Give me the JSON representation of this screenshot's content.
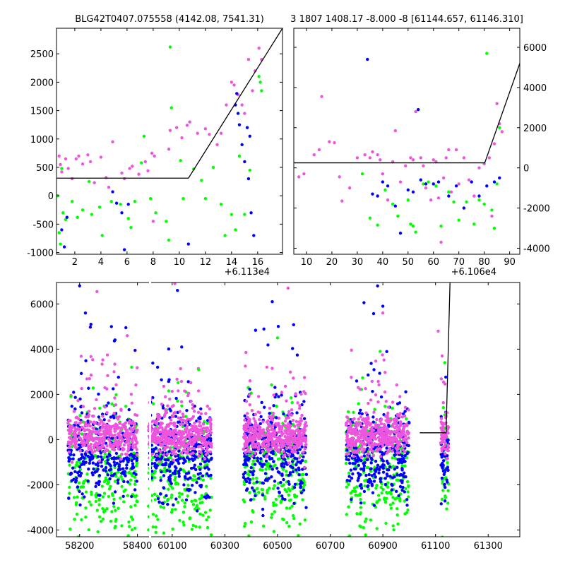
{
  "colors": {
    "blue": "#0000ff",
    "green": "#00ff00",
    "pink": "#ee55dd",
    "line": "#000000"
  },
  "chart_data": [
    {
      "type": "scatter",
      "title": "BLG42T0407.075558 (4142.08, 7541.31)",
      "x_offset_label": "+6.113e4",
      "xlim": [
        0.6,
        17.9
      ],
      "ylim": [
        -1030,
        2950
      ],
      "x_ticks": [
        "2",
        "4",
        "6",
        "8",
        "10",
        "12",
        "14",
        "16"
      ],
      "y_ticks": [
        "-1000",
        "-500",
        "0",
        "500",
        "1000",
        "1500",
        "2000",
        "2500"
      ],
      "y_axis_side": "left",
      "model_line": {
        "x": [
          0.6,
          10.7,
          17.9
        ],
        "y": [
          310,
          310,
          2950
        ]
      },
      "series": [
        {
          "color": "pink",
          "points": [
            [
              0.8,
              700
            ],
            [
              0.9,
              550
            ],
            [
              1.0,
              420
            ],
            [
              1.3,
              650
            ],
            [
              1.5,
              480
            ],
            [
              1.8,
              300
            ],
            [
              2.1,
              650
            ],
            [
              2.3,
              700
            ],
            [
              2.6,
              560
            ],
            [
              3.0,
              720
            ],
            [
              3.2,
              600
            ],
            [
              3.5,
              230
            ],
            [
              4.0,
              680
            ],
            [
              4.4,
              320
            ],
            [
              4.6,
              150
            ],
            [
              4.9,
              950
            ],
            [
              5.6,
              400
            ],
            [
              5.8,
              300
            ],
            [
              6.2,
              480
            ],
            [
              6.4,
              520
            ],
            [
              6.9,
              380
            ],
            [
              7.4,
              600
            ],
            [
              7.6,
              440
            ],
            [
              7.9,
              750
            ],
            [
              8.0,
              -450
            ],
            [
              8.1,
              700
            ],
            [
              9.2,
              820
            ],
            [
              9.3,
              1150
            ],
            [
              9.8,
              1200
            ],
            [
              10.2,
              1020
            ],
            [
              10.6,
              1240
            ],
            [
              10.8,
              1300
            ],
            [
              11.4,
              1100
            ],
            [
              12.0,
              1180
            ],
            [
              12.3,
              1080
            ],
            [
              12.9,
              900
            ],
            [
              13.2,
              1100
            ],
            [
              13.6,
              1600
            ],
            [
              14.0,
              2000
            ],
            [
              14.2,
              1950
            ],
            [
              14.5,
              1780
            ],
            [
              14.8,
              1600
            ],
            [
              15.0,
              1450
            ],
            [
              15.3,
              2400
            ],
            [
              15.6,
              1850
            ],
            [
              15.8,
              2200
            ],
            [
              16.1,
              2600
            ],
            [
              16.3,
              2400
            ]
          ]
        },
        {
          "color": "green",
          "points": [
            [
              0.7,
              0
            ],
            [
              0.8,
              -650
            ],
            [
              0.9,
              -850
            ],
            [
              1.0,
              480
            ],
            [
              1.1,
              -300
            ],
            [
              1.3,
              -420
            ],
            [
              1.8,
              -100
            ],
            [
              2.2,
              -380
            ],
            [
              2.6,
              -250
            ],
            [
              3.1,
              250
            ],
            [
              3.3,
              -330
            ],
            [
              3.9,
              -200
            ],
            [
              4.1,
              -700
            ],
            [
              4.8,
              -100
            ],
            [
              5.5,
              -150
            ],
            [
              6.1,
              -400
            ],
            [
              6.3,
              -560
            ],
            [
              6.6,
              -100
            ],
            [
              7.1,
              580
            ],
            [
              7.3,
              1050
            ],
            [
              7.8,
              -50
            ],
            [
              8.2,
              -300
            ],
            [
              9.0,
              -450
            ],
            [
              9.2,
              -780
            ],
            [
              9.4,
              1550
            ],
            [
              9.3,
              2620
            ],
            [
              10.1,
              620
            ],
            [
              10.3,
              -50
            ],
            [
              11.1,
              470
            ],
            [
              11.7,
              270
            ],
            [
              12.0,
              -50
            ],
            [
              12.6,
              500
            ],
            [
              13.2,
              -150
            ],
            [
              13.5,
              -700
            ],
            [
              14.0,
              -330
            ],
            [
              14.3,
              -600
            ],
            [
              14.6,
              700
            ],
            [
              15.0,
              -330
            ],
            [
              15.4,
              450
            ],
            [
              16.1,
              2100
            ],
            [
              16.2,
              2000
            ],
            [
              16.3,
              1850
            ]
          ]
        },
        {
          "color": "blue",
          "points": [
            [
              1.0,
              -600
            ],
            [
              1.2,
              -900
            ],
            [
              1.4,
              -380
            ],
            [
              4.9,
              70
            ],
            [
              5.2,
              -130
            ],
            [
              5.6,
              -300
            ],
            [
              5.8,
              -950
            ],
            [
              6.1,
              -150
            ],
            [
              10.7,
              -850
            ],
            [
              14.3,
              1600
            ],
            [
              14.4,
              1800
            ],
            [
              14.5,
              1450
            ],
            [
              14.6,
              1250
            ],
            [
              14.8,
              900
            ],
            [
              15.0,
              600
            ],
            [
              15.2,
              1200
            ],
            [
              15.4,
              1050
            ],
            [
              15.5,
              -300
            ],
            [
              15.7,
              -700
            ],
            [
              15.3,
              300
            ]
          ]
        }
      ]
    },
    {
      "type": "scatter",
      "title": "3 1807 1408.17 -8.000 -8 [61144.657, 61146.310]",
      "x_offset_label": "+6.106e4",
      "xlim": [
        5,
        94
      ],
      "ylim": [
        -4300,
        6950
      ],
      "x_ticks": [
        "10",
        "20",
        "30",
        "40",
        "50",
        "60",
        "70",
        "80",
        "90"
      ],
      "y_ticks": [
        "-4000",
        "-2000",
        "0",
        "2000",
        "4000",
        "6000"
      ],
      "y_axis_side": "right",
      "model_line": {
        "x": [
          5,
          80.2,
          94
        ],
        "y": [
          250,
          250,
          5200
        ]
      },
      "series": [
        {
          "color": "pink",
          "points": [
            [
              7,
              -450
            ],
            [
              9,
              -300
            ],
            [
              13,
              650
            ],
            [
              15,
              900
            ],
            [
              16,
              3550
            ],
            [
              19,
              1300
            ],
            [
              21,
              1250
            ],
            [
              23,
              -450
            ],
            [
              24,
              -1650
            ],
            [
              27,
              -1000
            ],
            [
              30,
              500
            ],
            [
              33,
              650
            ],
            [
              36,
              800
            ],
            [
              38,
              650
            ],
            [
              40,
              -300
            ],
            [
              42,
              -1600
            ],
            [
              45,
              1850
            ],
            [
              47,
              -700
            ],
            [
              49,
              100
            ],
            [
              51,
              500
            ],
            [
              53,
              2800
            ],
            [
              55,
              500
            ],
            [
              57,
              -1000
            ],
            [
              59,
              -1600
            ],
            [
              60,
              400
            ],
            [
              62,
              -1500
            ],
            [
              63,
              -3700
            ],
            [
              64,
              -500
            ],
            [
              66,
              900
            ],
            [
              67,
              -1200
            ],
            [
              69,
              900
            ],
            [
              70,
              -800
            ],
            [
              72,
              500
            ],
            [
              74,
              -600
            ],
            [
              76,
              -1400
            ],
            [
              78,
              0
            ],
            [
              80,
              200
            ],
            [
              82,
              500
            ],
            [
              84,
              1200
            ],
            [
              86,
              2200
            ],
            [
              87,
              1800
            ],
            [
              85,
              3200
            ],
            [
              83,
              -2400
            ],
            [
              65,
              500
            ],
            [
              61,
              300
            ],
            [
              56,
              100
            ],
            [
              52,
              400
            ],
            [
              44,
              300
            ],
            [
              39,
              400
            ],
            [
              35,
              500
            ]
          ]
        },
        {
          "color": "green",
          "points": [
            [
              32,
              -300
            ],
            [
              35,
              -2500
            ],
            [
              38,
              -2850
            ],
            [
              41,
              -1100
            ],
            [
              44,
              -1800
            ],
            [
              46,
              -2400
            ],
            [
              50,
              -1600
            ],
            [
              51,
              -2800
            ],
            [
              52,
              -2900
            ],
            [
              53,
              -3200
            ],
            [
              56,
              -800
            ],
            [
              58,
              -700
            ],
            [
              61,
              -900
            ],
            [
              63,
              -2900
            ],
            [
              66,
              -1200
            ],
            [
              68,
              -1700
            ],
            [
              70,
              -2600
            ],
            [
              73,
              -1700
            ],
            [
              76,
              -2800
            ],
            [
              78,
              -1600
            ],
            [
              80,
              -1800
            ],
            [
              81,
              5700
            ],
            [
              83,
              -2100
            ],
            [
              84,
              -3000
            ],
            [
              85,
              -800
            ],
            [
              86,
              2000
            ]
          ]
        },
        {
          "color": "blue",
          "points": [
            [
              34,
              5400
            ],
            [
              36,
              -1300
            ],
            [
              38,
              -1400
            ],
            [
              40,
              -700
            ],
            [
              42,
              -900
            ],
            [
              45,
              -1900
            ],
            [
              47,
              -3250
            ],
            [
              50,
              -1100
            ],
            [
              52,
              -1200
            ],
            [
              54,
              2900
            ],
            [
              55,
              -600
            ],
            [
              57,
              -800
            ],
            [
              60,
              -800
            ],
            [
              62,
              -700
            ],
            [
              66,
              -1400
            ],
            [
              69,
              -900
            ],
            [
              72,
              -2000
            ],
            [
              75,
              -700
            ],
            [
              78,
              -1400
            ],
            [
              81,
              -900
            ],
            [
              84,
              -700
            ],
            [
              86,
              -500
            ]
          ]
        }
      ]
    },
    {
      "type": "scatter",
      "title": "",
      "xlim": [
        58120,
        61420
      ],
      "ylim": [
        -4300,
        6950
      ],
      "x_ticks": [
        "58200",
        "58400",
        "60100",
        "60300",
        "60500",
        "60700",
        "60900",
        "61100",
        "61300"
      ],
      "y_ticks": [
        "-4000",
        "-2000",
        "0",
        "2000",
        "4000",
        "6000"
      ],
      "y_axis_side": "left",
      "broken_axis": {
        "left_panel_xlim": [
          58120,
          58440
        ],
        "right_panel_xlim": [
          60020,
          61420
        ]
      },
      "seasons": [
        [
          58160,
          58400
        ],
        [
          60010,
          60250
        ],
        [
          60370,
          60610
        ],
        [
          60760,
          61000
        ],
        [
          61120,
          61150
        ]
      ],
      "model_line": {
        "x": [
          61040,
          61140,
          61155
        ],
        "y": [
          300,
          300,
          6950
        ]
      },
      "series": [
        {
          "color": "blue",
          "points": [
            [
              58200,
              6800
            ],
            [
              58220,
              5600
            ],
            [
              58310,
              5000
            ],
            [
              58360,
              4950
            ],
            [
              60120,
              6600
            ],
            [
              60480,
              6100
            ],
            [
              60880,
              6800
            ],
            [
              60900,
              5900
            ]
          ]
        },
        {
          "color": "green",
          "points": [
            [
              58170,
              1900
            ],
            [
              58380,
              3200
            ],
            [
              60200,
              3100
            ],
            [
              60500,
              4500
            ],
            [
              60890,
              3900
            ],
            [
              61135,
              3400
            ]
          ]
        },
        {
          "color": "pink",
          "points": [
            [
              58260,
              6550
            ],
            [
              60110,
              6900
            ],
            [
              60540,
              6700
            ],
            [
              60900,
              5600
            ],
            [
              61110,
              4800
            ],
            [
              61125,
              3700
            ]
          ]
        }
      ]
    }
  ]
}
